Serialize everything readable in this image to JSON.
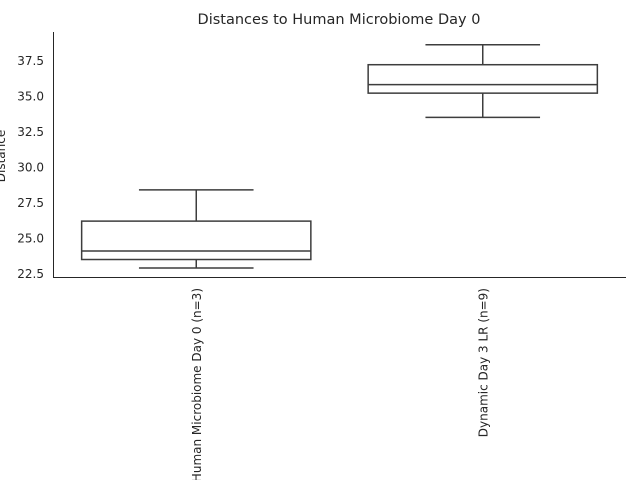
{
  "chart_data": {
    "type": "box",
    "title": "Distances to Human Microbiome Day 0",
    "xlabel": "",
    "ylabel": "Distance",
    "ylim": [
      22.2,
      39.5
    ],
    "yticks": [
      "22.5",
      "25.0",
      "27.5",
      "30.0",
      "32.5",
      "35.0",
      "37.5"
    ],
    "grid": false,
    "categories": [
      "Human Microbiome Day 0 (n=3)",
      "Dynamic Day 3 LR (n=9)"
    ],
    "boxes": [
      {
        "category": "Human Microbiome Day 0 (n=3)",
        "whisker_low": 22.9,
        "q1": 23.5,
        "median": 24.1,
        "q3": 26.2,
        "whisker_high": 28.4
      },
      {
        "category": "Dynamic Day 3 LR (n=9)",
        "whisker_low": 33.5,
        "q1": 35.2,
        "median": 35.8,
        "q3": 37.2,
        "whisker_high": 38.6
      }
    ]
  }
}
